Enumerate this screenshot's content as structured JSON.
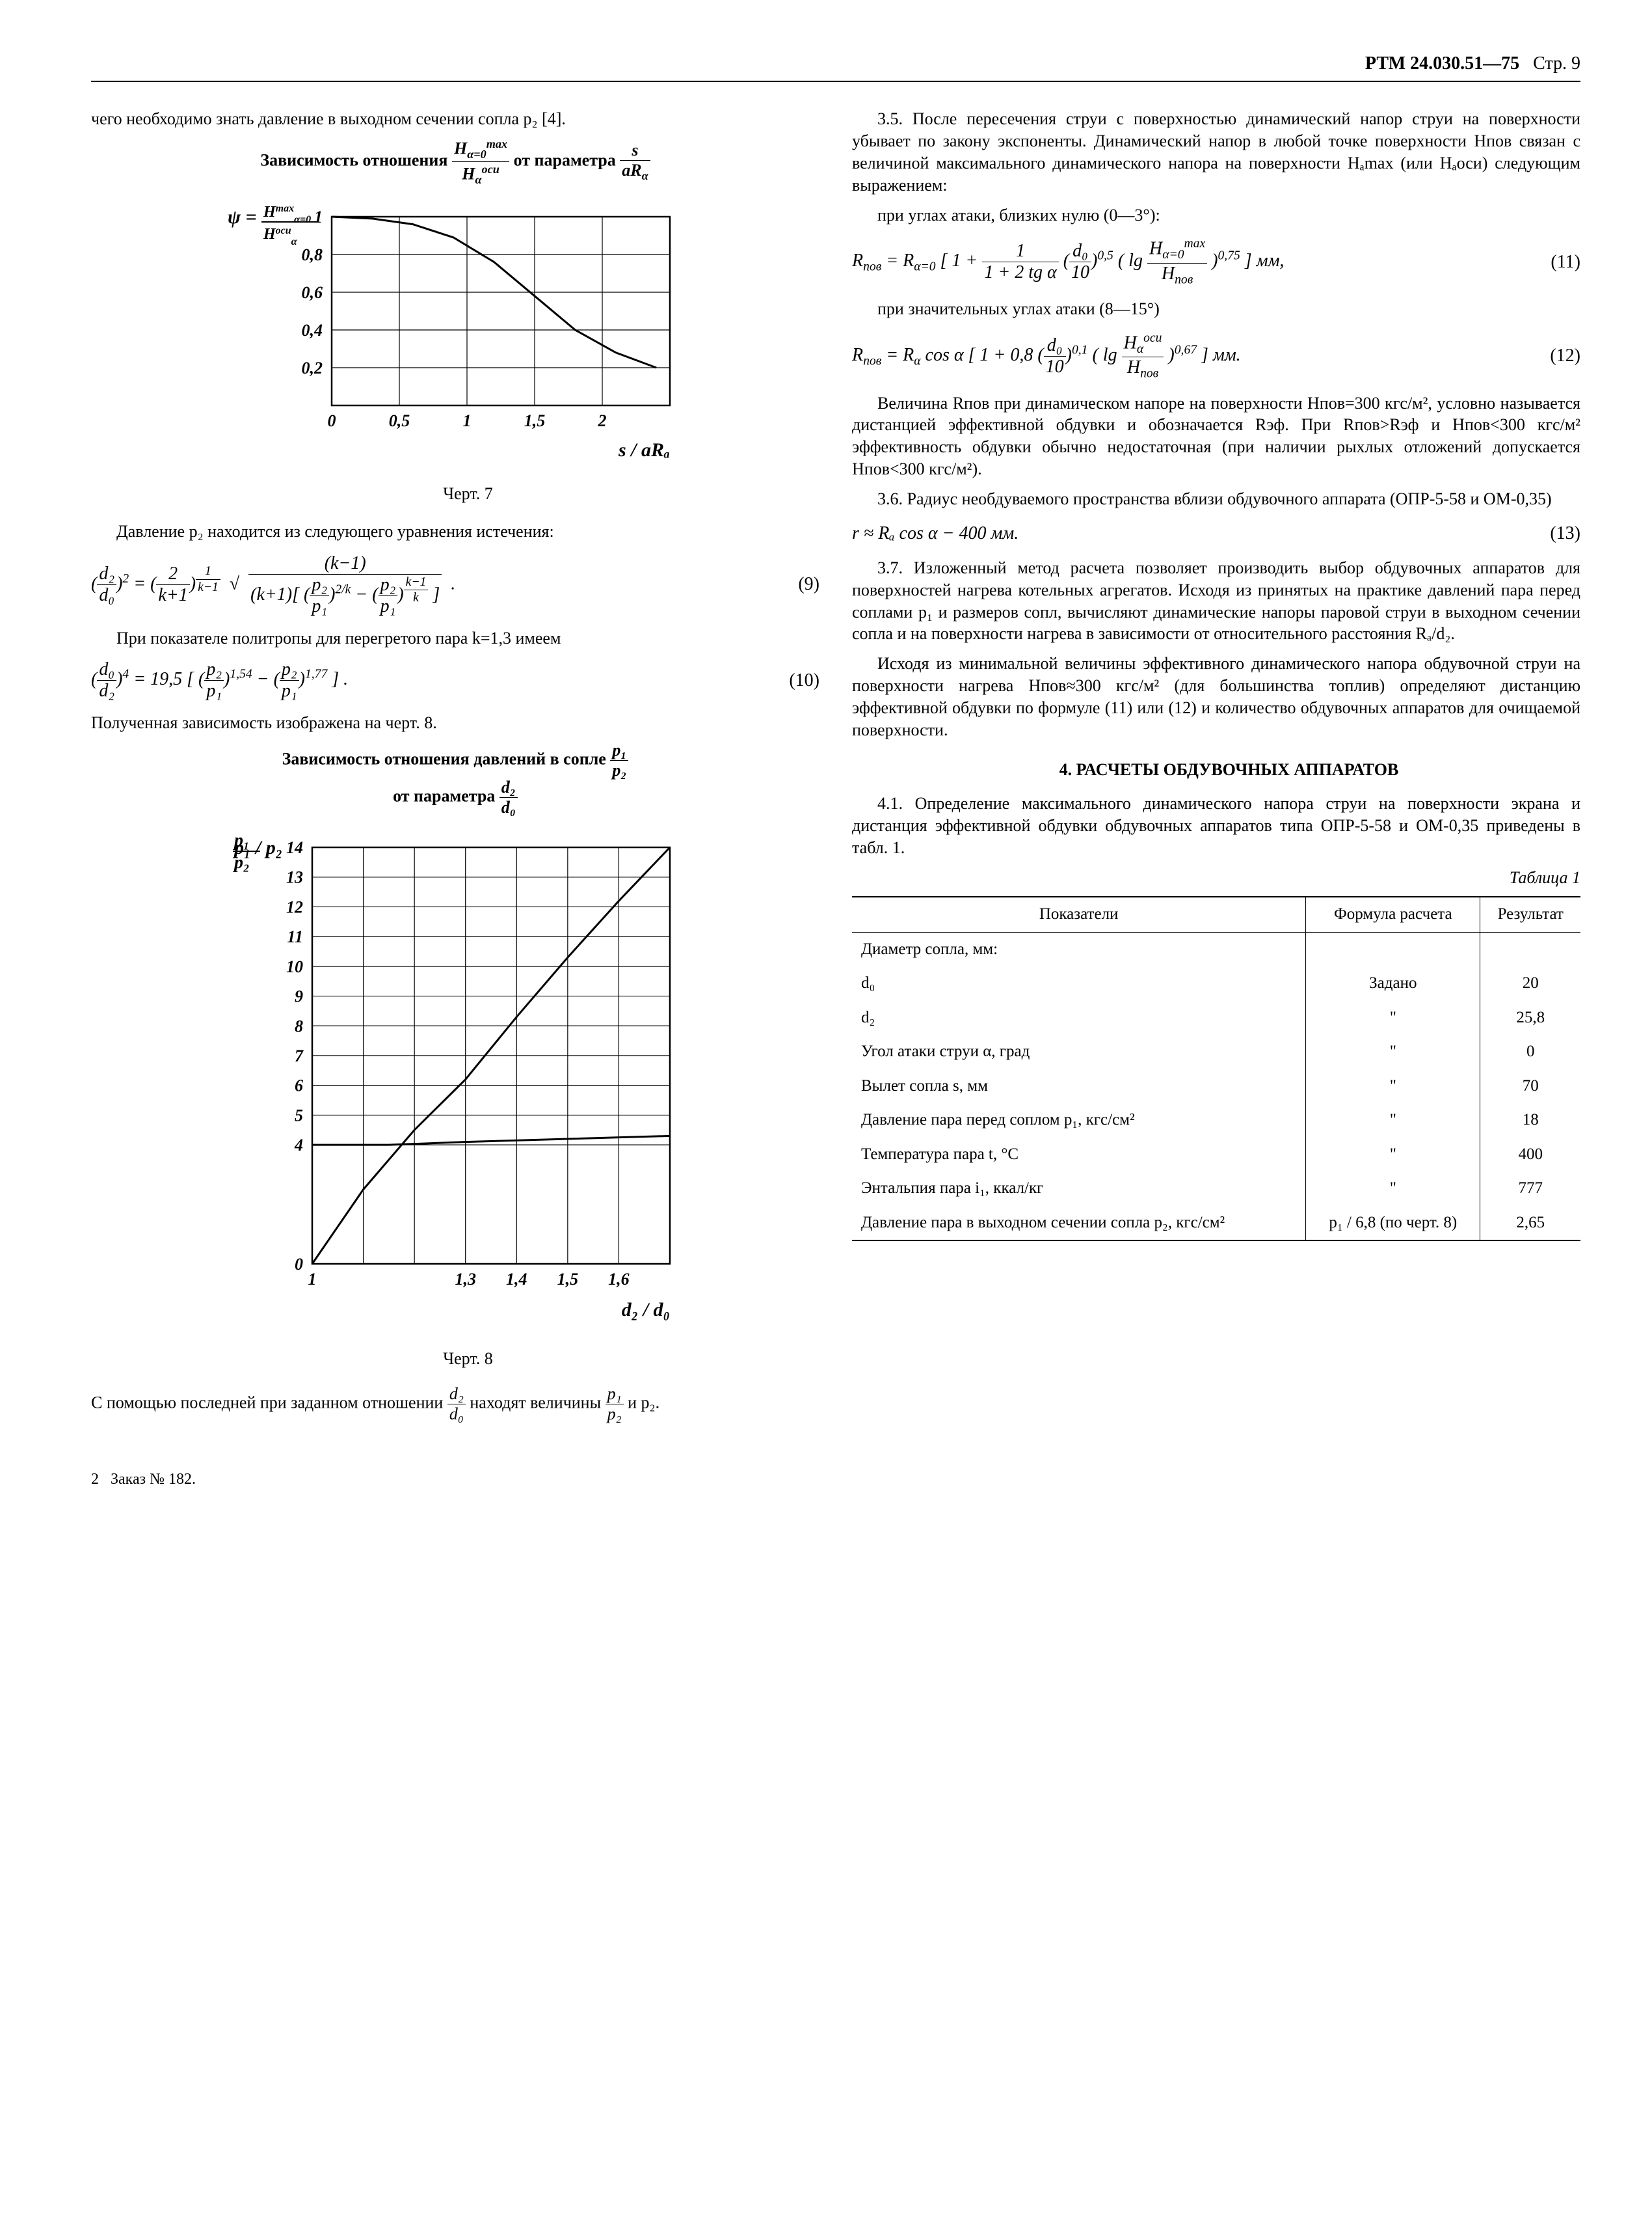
{
  "header": {
    "doc_id": "РТМ 24.030.51—75",
    "page": "Стр. 9"
  },
  "footer": {
    "sheet": "2",
    "order": "Заказ № 182."
  },
  "left": {
    "lead": "чего необходимо знать давление в выходном сечении сопла p₂ [4].",
    "chart7_title_a": "Зависимость отношения ",
    "chart7_title_b": " от параметра ",
    "chart7": {
      "type": "line",
      "ylabel_top": "ψ =",
      "y_ticks": [
        0.2,
        0.4,
        0.6,
        0.8,
        1.0
      ],
      "x_ticks": [
        0,
        0.5,
        1.0,
        1.5,
        2.0
      ],
      "xlabel": "s / aRₐ",
      "curve_x": [
        0,
        0.3,
        0.6,
        0.9,
        1.2,
        1.5,
        1.8,
        2.1,
        2.4
      ],
      "curve_y": [
        1.0,
        0.99,
        0.96,
        0.89,
        0.76,
        0.58,
        0.4,
        0.28,
        0.2
      ],
      "stroke": "#000000",
      "grid_color": "#000000",
      "background": "#ffffff",
      "line_width": 3,
      "grid_width": 1.2,
      "caption": "Черт. 7"
    },
    "p2": "Давление p₂ находится из следующего уравнения истечения:",
    "eq9_num": "(9)",
    "p3": "При показателе политропы для перегретого пара k=1,3 имеем",
    "eq10_num": "(10)",
    "p4": "Полученная зависимость изображена на черт. 8.",
    "chart8_title_a": "Зависимость отношения давлений в сопле ",
    "chart8_title_b": "от параметра ",
    "chart8": {
      "type": "line",
      "y_ticks": [
        0,
        4,
        5,
        6,
        7,
        8,
        9,
        10,
        11,
        12,
        13,
        14
      ],
      "x_ticks": [
        1.0,
        1.3,
        1.4,
        1.5,
        1.6
      ],
      "ylabel": "p₁ / p₂",
      "xlabel": "d₂ / d₀",
      "curve_x": [
        1.0,
        1.1,
        1.2,
        1.3,
        1.4,
        1.5,
        1.6,
        1.7
      ],
      "curve_y": [
        0,
        2.5,
        4.5,
        6.2,
        8.3,
        10.3,
        12.2,
        14.0
      ],
      "aux_x": [
        1.0,
        1.15,
        1.3,
        1.5,
        1.7
      ],
      "aux_y": [
        4.0,
        4.0,
        4.1,
        4.2,
        4.3
      ],
      "stroke": "#000000",
      "grid_color": "#000000",
      "background": "#ffffff",
      "line_width": 3,
      "grid_width": 1.2,
      "caption": "Черт. 8"
    },
    "p5": "С помощью последней при заданном отношении ",
    "p5b": " находят величины ",
    "p5c": " и p₂."
  },
  "right": {
    "p35": "3.5. После пересечения струи с поверхностью динамический напор струи на поверхности убывает по закону экспоненты. Динамический напор в любой точке поверхности Hпов связан с величиной максимального динамического напора на поверхности Hₐmax (или Hₐоси) следующим выражением:",
    "p35a": "при углах атаки, близких нулю (0—3°):",
    "eq11_num": "(11)",
    "p35b": "при значительных углах атаки (8—15°)",
    "eq12_num": "(12)",
    "p35c": "Величина Rпов при динамическом напоре на поверхности Hпов=300 кгс/м², условно называется дистанцией эффективной обдувки и обозначается Rэф. При Rпов>Rэф и Hпов<300 кгс/м² эффективность обдувки обычно недостаточная (при наличии рыхлых отложений допускается Hпов<300 кгс/м²).",
    "p36": "3.6. Радиус необдуваемого пространства вблизи обдувочного аппарата (ОПР-5-58 и ОМ-0,35)",
    "eq13": "r ≈ Rₐ cos α − 400 мм.",
    "eq13_num": "(13)",
    "p37": "3.7. Изложенный метод расчета позволяет производить выбор обдувочных аппаратов для поверхностей нагрева котельных агрегатов. Исходя из принятых на практике давлений пара перед соплами p₁ и размеров сопл, вычисляют динамические напоры паровой струи в выходном сечении сопла и на поверхности нагрева в зависимости от относительного расстояния Rₐ/d₂.",
    "p37b": "Исходя из минимальной величины эффективного динамического напора обдувочной струи на поверхности нагрева Hпов≈300 кгс/м² (для большинства топлив) определяют дистанцию эффективной обдувки по формуле (11) или (12) и количество обдувочных аппаратов для очищаемой поверхности.",
    "sec4": "4. РАСЧЕТЫ ОБДУВОЧНЫХ АППАРАТОВ",
    "p41": "4.1. Определение максимального динамического напора струи на поверхности экрана и дистанция эффективной обдувки обдувочных аппаратов типа ОПР-5-58 и ОМ-0,35 приведены в табл. 1.",
    "table_label": "Таблица 1",
    "table": {
      "columns": [
        "Показатели",
        "Формула расчета",
        "Резуль­тат"
      ],
      "rows": [
        [
          "Диаметр сопла, мм:",
          "",
          ""
        ],
        [
          "        d₀",
          "Задано",
          "20"
        ],
        [
          "        d₂",
          "\"",
          "25,8"
        ],
        [
          "Угол атаки струи α, град",
          "\"",
          "0"
        ],
        [
          "Вылет сопла s, мм",
          "\"",
          "70"
        ],
        [
          "Давление пара перед соплом p₁, кгс/см²",
          "\"",
          "18"
        ],
        [
          "Температура пара t, °C",
          "\"",
          "400"
        ],
        [
          "Энтальпия пара i₁, ккал/кг",
          "\"",
          "777"
        ],
        [
          "Давление пара в выходном сечении сопла p₂, кгс/см²",
          "p₁ / 6,8 (по черт. 8)",
          "2,65"
        ]
      ],
      "col_align": [
        "left",
        "center",
        "center"
      ]
    }
  }
}
